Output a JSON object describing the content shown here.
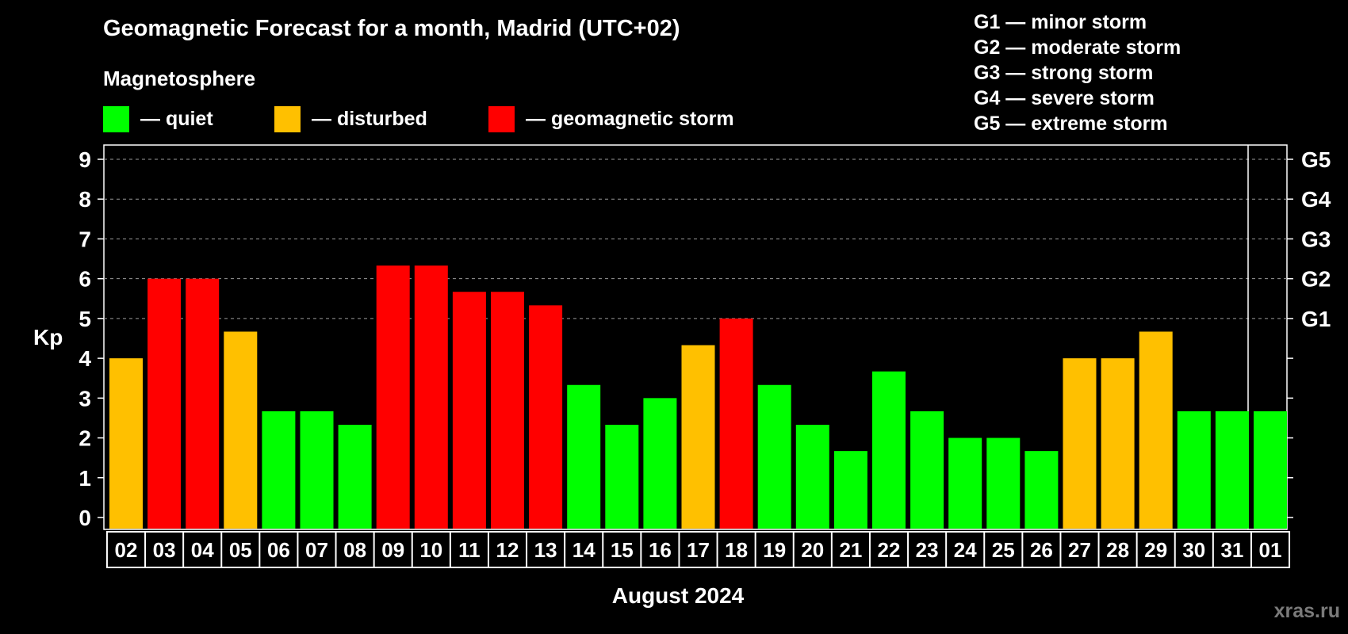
{
  "chart_data": {
    "type": "bar",
    "title": "Geomagnetic Forecast for a month, Madrid (UTC+02)",
    "subtitle": "Magnetosphere",
    "xlabel": "August 2024",
    "ylabel": "Kp",
    "ylim": [
      0,
      9
    ],
    "y_ticks": [
      0,
      1,
      2,
      3,
      4,
      5,
      6,
      7,
      8,
      9
    ],
    "right_ticks": [
      {
        "value": 5,
        "label": "G1"
      },
      {
        "value": 6,
        "label": "G2"
      },
      {
        "value": 7,
        "label": "G3"
      },
      {
        "value": 8,
        "label": "G4"
      },
      {
        "value": 9,
        "label": "G5"
      }
    ],
    "grid": "dashed horizontal at Kp 5-9",
    "legend": [
      {
        "label": "— quiet",
        "color": "#00ff00"
      },
      {
        "label": "— disturbed",
        "color": "#ffc000"
      },
      {
        "label": "— geomagnetic storm",
        "color": "#ff0000"
      }
    ],
    "storm_scale": [
      "G1 — minor storm",
      "G2 — moderate storm",
      "G3 — strong storm",
      "G4 — severe storm",
      "G5 — extreme storm"
    ],
    "categories": [
      "02",
      "03",
      "04",
      "05",
      "06",
      "07",
      "08",
      "09",
      "10",
      "11",
      "12",
      "13",
      "14",
      "15",
      "16",
      "17",
      "18",
      "19",
      "20",
      "21",
      "22",
      "23",
      "24",
      "25",
      "26",
      "27",
      "28",
      "29",
      "30",
      "31",
      "01"
    ],
    "values": [
      4.0,
      6.0,
      6.0,
      4.67,
      2.67,
      2.67,
      2.33,
      6.33,
      6.33,
      5.67,
      5.67,
      5.33,
      3.33,
      2.33,
      3.0,
      4.33,
      5.0,
      3.33,
      2.33,
      1.67,
      3.67,
      2.67,
      2.0,
      2.0,
      1.67,
      4.0,
      4.0,
      4.67,
      2.67,
      2.67,
      2.67
    ],
    "bar_status": [
      "disturbed",
      "storm",
      "storm",
      "disturbed",
      "quiet",
      "quiet",
      "quiet",
      "storm",
      "storm",
      "storm",
      "storm",
      "storm",
      "quiet",
      "quiet",
      "quiet",
      "disturbed",
      "storm",
      "quiet",
      "quiet",
      "quiet",
      "quiet",
      "quiet",
      "quiet",
      "quiet",
      "quiet",
      "disturbed",
      "disturbed",
      "disturbed",
      "quiet",
      "quiet",
      "quiet"
    ],
    "colors": {
      "quiet": "#00ff00",
      "disturbed": "#ffc000",
      "storm": "#ff0000"
    }
  },
  "watermark": "xras.ru"
}
